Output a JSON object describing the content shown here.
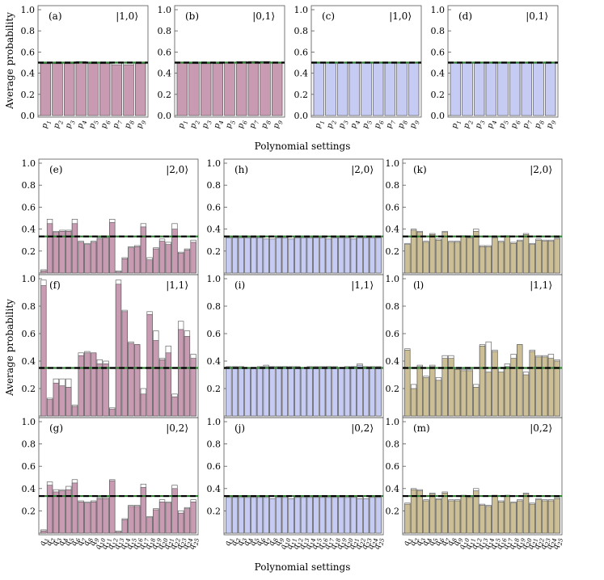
{
  "figure": {
    "ylabel": "Average probability",
    "xlabel": "Polynomial settings",
    "ylim": [
      0,
      1
    ],
    "yticks": [
      "0.0",
      "0.2",
      "0.4",
      "0.6",
      "0.8",
      "1.0"
    ]
  },
  "colors": {
    "pink": "#c99bb3",
    "blue": "#c5cbf2",
    "tan": "#cdbf95",
    "frame": "#555555",
    "reference_line": "#000000",
    "reference_line_alt": "#2e7d32"
  },
  "chart_data": [
    {
      "id": "a",
      "type": "bar",
      "tag": "(a)",
      "state": "|1,0⟩",
      "color": "pink",
      "categories": [
        "p1",
        "p2",
        "p3",
        "p4",
        "p5",
        "p6",
        "p7",
        "p8",
        "p9"
      ],
      "values": [
        0.49,
        0.49,
        0.49,
        0.5,
        0.49,
        0.49,
        0.48,
        0.48,
        0.49
      ],
      "outline_values": [
        0.5,
        0.5,
        0.5,
        0.51,
        0.5,
        0.5,
        0.5,
        0.5,
        0.5
      ],
      "reference": 0.5
    },
    {
      "id": "b",
      "type": "bar",
      "tag": "(b)",
      "state": "|0,1⟩",
      "color": "pink",
      "categories": [
        "p1",
        "p2",
        "p3",
        "p4",
        "p5",
        "p6",
        "p7",
        "p8",
        "p9"
      ],
      "values": [
        0.5,
        0.49,
        0.49,
        0.49,
        0.5,
        0.5,
        0.51,
        0.51,
        0.5
      ],
      "outline_values": [
        0.5,
        0.5,
        0.5,
        0.5,
        0.5,
        0.51,
        0.51,
        0.51,
        0.5
      ],
      "reference": 0.5
    },
    {
      "id": "c",
      "type": "bar",
      "tag": "(c)",
      "state": "|1,0⟩",
      "color": "blue",
      "categories": [
        "p1",
        "p2",
        "p3",
        "p4",
        "p5",
        "p6",
        "p7",
        "p8",
        "p9"
      ],
      "values": [
        0.5,
        0.5,
        0.5,
        0.5,
        0.5,
        0.5,
        0.5,
        0.5,
        0.5
      ],
      "outline_values": [
        0.5,
        0.5,
        0.5,
        0.5,
        0.5,
        0.5,
        0.5,
        0.5,
        0.5
      ],
      "reference": 0.5
    },
    {
      "id": "d",
      "type": "bar",
      "tag": "(d)",
      "state": "|0,1⟩",
      "color": "blue",
      "categories": [
        "p1",
        "p2",
        "p3",
        "p4",
        "p5",
        "p6",
        "p7",
        "p8",
        "p9"
      ],
      "values": [
        0.5,
        0.5,
        0.5,
        0.5,
        0.5,
        0.5,
        0.5,
        0.5,
        0.5
      ],
      "outline_values": [
        0.5,
        0.5,
        0.5,
        0.5,
        0.5,
        0.5,
        0.5,
        0.5,
        0.5
      ],
      "reference": 0.5
    },
    {
      "id": "e",
      "type": "bar",
      "tag": "(e)",
      "state": "|2,0⟩",
      "color": "pink",
      "categories": [
        "q1",
        "q2",
        "q3",
        "q4",
        "q5",
        "q6",
        "q7",
        "q8",
        "q9",
        "q10",
        "q11",
        "q12",
        "q13",
        "q14",
        "q15",
        "q16",
        "q17",
        "q18",
        "q19",
        "q20",
        "q21",
        "q22",
        "q23",
        "q24",
        "q25"
      ],
      "values": [
        0.02,
        0.45,
        0.37,
        0.38,
        0.38,
        0.45,
        0.28,
        0.26,
        0.28,
        0.31,
        0.32,
        0.46,
        0.01,
        0.13,
        0.23,
        0.24,
        0.42,
        0.12,
        0.22,
        0.29,
        0.26,
        0.4,
        0.18,
        0.21,
        0.28
      ],
      "outline_values": [
        0.03,
        0.49,
        0.38,
        0.39,
        0.39,
        0.49,
        0.29,
        0.27,
        0.29,
        0.32,
        0.33,
        0.49,
        0.02,
        0.14,
        0.24,
        0.25,
        0.45,
        0.14,
        0.23,
        0.31,
        0.28,
        0.45,
        0.19,
        0.22,
        0.3
      ],
      "reference": 0.333
    },
    {
      "id": "h",
      "type": "bar",
      "tag": "(h)",
      "state": "|2,0⟩",
      "color": "blue",
      "categories": [
        "q1",
        "q2",
        "q3",
        "q4",
        "q5",
        "q6",
        "q7",
        "q8",
        "q9",
        "q10",
        "q11",
        "q12",
        "q13",
        "q14",
        "q15",
        "q16",
        "q17",
        "q18",
        "q19",
        "q20",
        "q21",
        "q22",
        "q23",
        "q24",
        "q25"
      ],
      "values": [
        0.32,
        0.32,
        0.32,
        0.32,
        0.32,
        0.32,
        0.31,
        0.31,
        0.32,
        0.32,
        0.31,
        0.32,
        0.32,
        0.32,
        0.32,
        0.32,
        0.31,
        0.32,
        0.32,
        0.32,
        0.31,
        0.32,
        0.32,
        0.32,
        0.32
      ],
      "outline_values": [
        0.33,
        0.33,
        0.33,
        0.33,
        0.33,
        0.33,
        0.33,
        0.33,
        0.33,
        0.33,
        0.33,
        0.33,
        0.33,
        0.33,
        0.33,
        0.33,
        0.33,
        0.33,
        0.33,
        0.33,
        0.33,
        0.33,
        0.33,
        0.33,
        0.33
      ],
      "reference": 0.333
    },
    {
      "id": "k",
      "type": "bar",
      "tag": "(k)",
      "state": "|2,0⟩",
      "color": "tan",
      "categories": [
        "q1",
        "q2",
        "q3",
        "q4",
        "q5",
        "q6",
        "q7",
        "q8",
        "q9",
        "q10",
        "q11",
        "q12",
        "q13",
        "q14",
        "q15",
        "q16",
        "q17",
        "q18",
        "q19",
        "q20",
        "q21",
        "q22",
        "q23",
        "q24",
        "q25"
      ],
      "values": [
        0.26,
        0.39,
        0.37,
        0.28,
        0.35,
        0.3,
        0.37,
        0.28,
        0.28,
        0.33,
        0.32,
        0.38,
        0.24,
        0.24,
        0.32,
        0.28,
        0.33,
        0.27,
        0.29,
        0.35,
        0.26,
        0.3,
        0.29,
        0.29,
        0.31
      ],
      "outline_values": [
        0.27,
        0.4,
        0.38,
        0.29,
        0.36,
        0.31,
        0.38,
        0.29,
        0.29,
        0.34,
        0.33,
        0.4,
        0.25,
        0.25,
        0.33,
        0.29,
        0.34,
        0.28,
        0.3,
        0.36,
        0.27,
        0.31,
        0.3,
        0.3,
        0.32
      ],
      "reference": 0.333
    },
    {
      "id": "f",
      "type": "bar",
      "tag": "(f)",
      "state": "|1,1⟩",
      "color": "pink",
      "categories": [
        "q1",
        "q2",
        "q3",
        "q4",
        "q5",
        "q6",
        "q7",
        "q8",
        "q9",
        "q10",
        "q11",
        "q12",
        "q13",
        "q14",
        "q15",
        "q16",
        "q17",
        "q18",
        "q19",
        "q20",
        "q21",
        "q22",
        "q23",
        "q24",
        "q25"
      ],
      "values": [
        0.95,
        0.12,
        0.24,
        0.22,
        0.21,
        0.07,
        0.44,
        0.46,
        0.46,
        0.38,
        0.38,
        0.05,
        0.96,
        0.76,
        0.53,
        0.52,
        0.16,
        0.74,
        0.55,
        0.41,
        0.46,
        0.14,
        0.63,
        0.58,
        0.42
      ],
      "outline_values": [
        0.99,
        0.13,
        0.27,
        0.27,
        0.27,
        0.08,
        0.46,
        0.47,
        0.46,
        0.41,
        0.4,
        0.06,
        0.99,
        0.77,
        0.54,
        0.52,
        0.2,
        0.76,
        0.62,
        0.42,
        0.51,
        0.16,
        0.69,
        0.62,
        0.45
      ],
      "reference": 0.35
    },
    {
      "id": "i",
      "type": "bar",
      "tag": "(i)",
      "state": "|1,1⟩",
      "color": "blue",
      "categories": [
        "q1",
        "q2",
        "q3",
        "q4",
        "q5",
        "q6",
        "q7",
        "q8",
        "q9",
        "q10",
        "q11",
        "q12",
        "q13",
        "q14",
        "q15",
        "q16",
        "q17",
        "q18",
        "q19",
        "q20",
        "q21",
        "q22",
        "q23",
        "q24",
        "q25"
      ],
      "values": [
        0.35,
        0.35,
        0.35,
        0.35,
        0.35,
        0.35,
        0.36,
        0.36,
        0.35,
        0.36,
        0.35,
        0.35,
        0.35,
        0.35,
        0.35,
        0.35,
        0.36,
        0.35,
        0.35,
        0.35,
        0.36,
        0.37,
        0.35,
        0.35,
        0.35
      ],
      "outline_values": [
        0.36,
        0.36,
        0.36,
        0.35,
        0.35,
        0.36,
        0.37,
        0.36,
        0.36,
        0.36,
        0.36,
        0.36,
        0.35,
        0.36,
        0.36,
        0.36,
        0.36,
        0.36,
        0.35,
        0.36,
        0.36,
        0.38,
        0.36,
        0.36,
        0.36
      ],
      "reference": 0.35
    },
    {
      "id": "l",
      "type": "bar",
      "tag": "(l)",
      "state": "|1,1⟩",
      "color": "tan",
      "categories": [
        "q1",
        "q2",
        "q3",
        "q4",
        "q5",
        "q6",
        "q7",
        "q8",
        "q9",
        "q10",
        "q11",
        "q12",
        "q13",
        "q14",
        "q15",
        "q16",
        "q17",
        "q18",
        "q19",
        "q20",
        "q21",
        "q22",
        "q23",
        "q24",
        "q25"
      ],
      "values": [
        0.48,
        0.2,
        0.36,
        0.28,
        0.36,
        0.26,
        0.42,
        0.42,
        0.34,
        0.33,
        0.33,
        0.21,
        0.51,
        0.32,
        0.47,
        0.32,
        0.36,
        0.42,
        0.52,
        0.3,
        0.47,
        0.43,
        0.43,
        0.42,
        0.4
      ],
      "outline_values": [
        0.49,
        0.23,
        0.37,
        0.29,
        0.37,
        0.28,
        0.44,
        0.44,
        0.35,
        0.34,
        0.34,
        0.23,
        0.52,
        0.54,
        0.48,
        0.35,
        0.38,
        0.45,
        0.52,
        0.32,
        0.48,
        0.44,
        0.44,
        0.45,
        0.41
      ],
      "reference": 0.35
    },
    {
      "id": "g",
      "type": "bar",
      "tag": "(g)",
      "state": "|0,2⟩",
      "color": "pink",
      "categories": [
        "q1",
        "q2",
        "q3",
        "q4",
        "q5",
        "q6",
        "q7",
        "q8",
        "q9",
        "q10",
        "q11",
        "q12",
        "q13",
        "q14",
        "q15",
        "q16",
        "q17",
        "q18",
        "q19",
        "q20",
        "q21",
        "q22",
        "q23",
        "q24",
        "q25"
      ],
      "values": [
        0.02,
        0.43,
        0.37,
        0.38,
        0.39,
        0.45,
        0.28,
        0.27,
        0.28,
        0.31,
        0.31,
        0.47,
        0.01,
        0.12,
        0.24,
        0.24,
        0.41,
        0.14,
        0.21,
        0.28,
        0.27,
        0.4,
        0.18,
        0.22,
        0.28
      ],
      "outline_values": [
        0.03,
        0.46,
        0.39,
        0.39,
        0.42,
        0.48,
        0.29,
        0.28,
        0.29,
        0.32,
        0.32,
        0.48,
        0.02,
        0.13,
        0.25,
        0.25,
        0.44,
        0.15,
        0.22,
        0.3,
        0.28,
        0.43,
        0.2,
        0.23,
        0.3
      ],
      "reference": 0.333
    },
    {
      "id": "j",
      "type": "bar",
      "tag": "(j)",
      "state": "|0,2⟩",
      "color": "blue",
      "categories": [
        "q1",
        "q2",
        "q3",
        "q4",
        "q5",
        "q6",
        "q7",
        "q8",
        "q9",
        "q10",
        "q11",
        "q12",
        "q13",
        "q14",
        "q15",
        "q16",
        "q17",
        "q18",
        "q19",
        "q20",
        "q21",
        "q22",
        "q23",
        "q24",
        "q25"
      ],
      "values": [
        0.32,
        0.32,
        0.32,
        0.32,
        0.32,
        0.32,
        0.32,
        0.31,
        0.32,
        0.32,
        0.31,
        0.32,
        0.32,
        0.32,
        0.32,
        0.32,
        0.32,
        0.32,
        0.32,
        0.32,
        0.32,
        0.31,
        0.31,
        0.32,
        0.32
      ],
      "outline_values": [
        0.33,
        0.33,
        0.33,
        0.33,
        0.33,
        0.33,
        0.33,
        0.33,
        0.33,
        0.33,
        0.33,
        0.33,
        0.33,
        0.33,
        0.33,
        0.33,
        0.33,
        0.33,
        0.33,
        0.33,
        0.33,
        0.33,
        0.33,
        0.33,
        0.33
      ],
      "reference": 0.333
    },
    {
      "id": "m",
      "type": "bar",
      "tag": "(m)",
      "state": "|0,2⟩",
      "color": "tan",
      "categories": [
        "q1",
        "q2",
        "q3",
        "q4",
        "q5",
        "q6",
        "q7",
        "q8",
        "q9",
        "q10",
        "q11",
        "q12",
        "q13",
        "q14",
        "q15",
        "q16",
        "q17",
        "q18",
        "q19",
        "q20",
        "q21",
        "q22",
        "q23",
        "q24",
        "q25"
      ],
      "values": [
        0.26,
        0.39,
        0.38,
        0.29,
        0.35,
        0.3,
        0.36,
        0.29,
        0.29,
        0.33,
        0.32,
        0.38,
        0.25,
        0.24,
        0.33,
        0.28,
        0.33,
        0.27,
        0.29,
        0.35,
        0.26,
        0.3,
        0.29,
        0.29,
        0.31
      ],
      "outline_values": [
        0.27,
        0.4,
        0.39,
        0.3,
        0.36,
        0.31,
        0.37,
        0.3,
        0.3,
        0.34,
        0.33,
        0.4,
        0.26,
        0.25,
        0.34,
        0.29,
        0.34,
        0.28,
        0.3,
        0.36,
        0.27,
        0.31,
        0.3,
        0.3,
        0.32
      ],
      "reference": 0.333
    }
  ]
}
